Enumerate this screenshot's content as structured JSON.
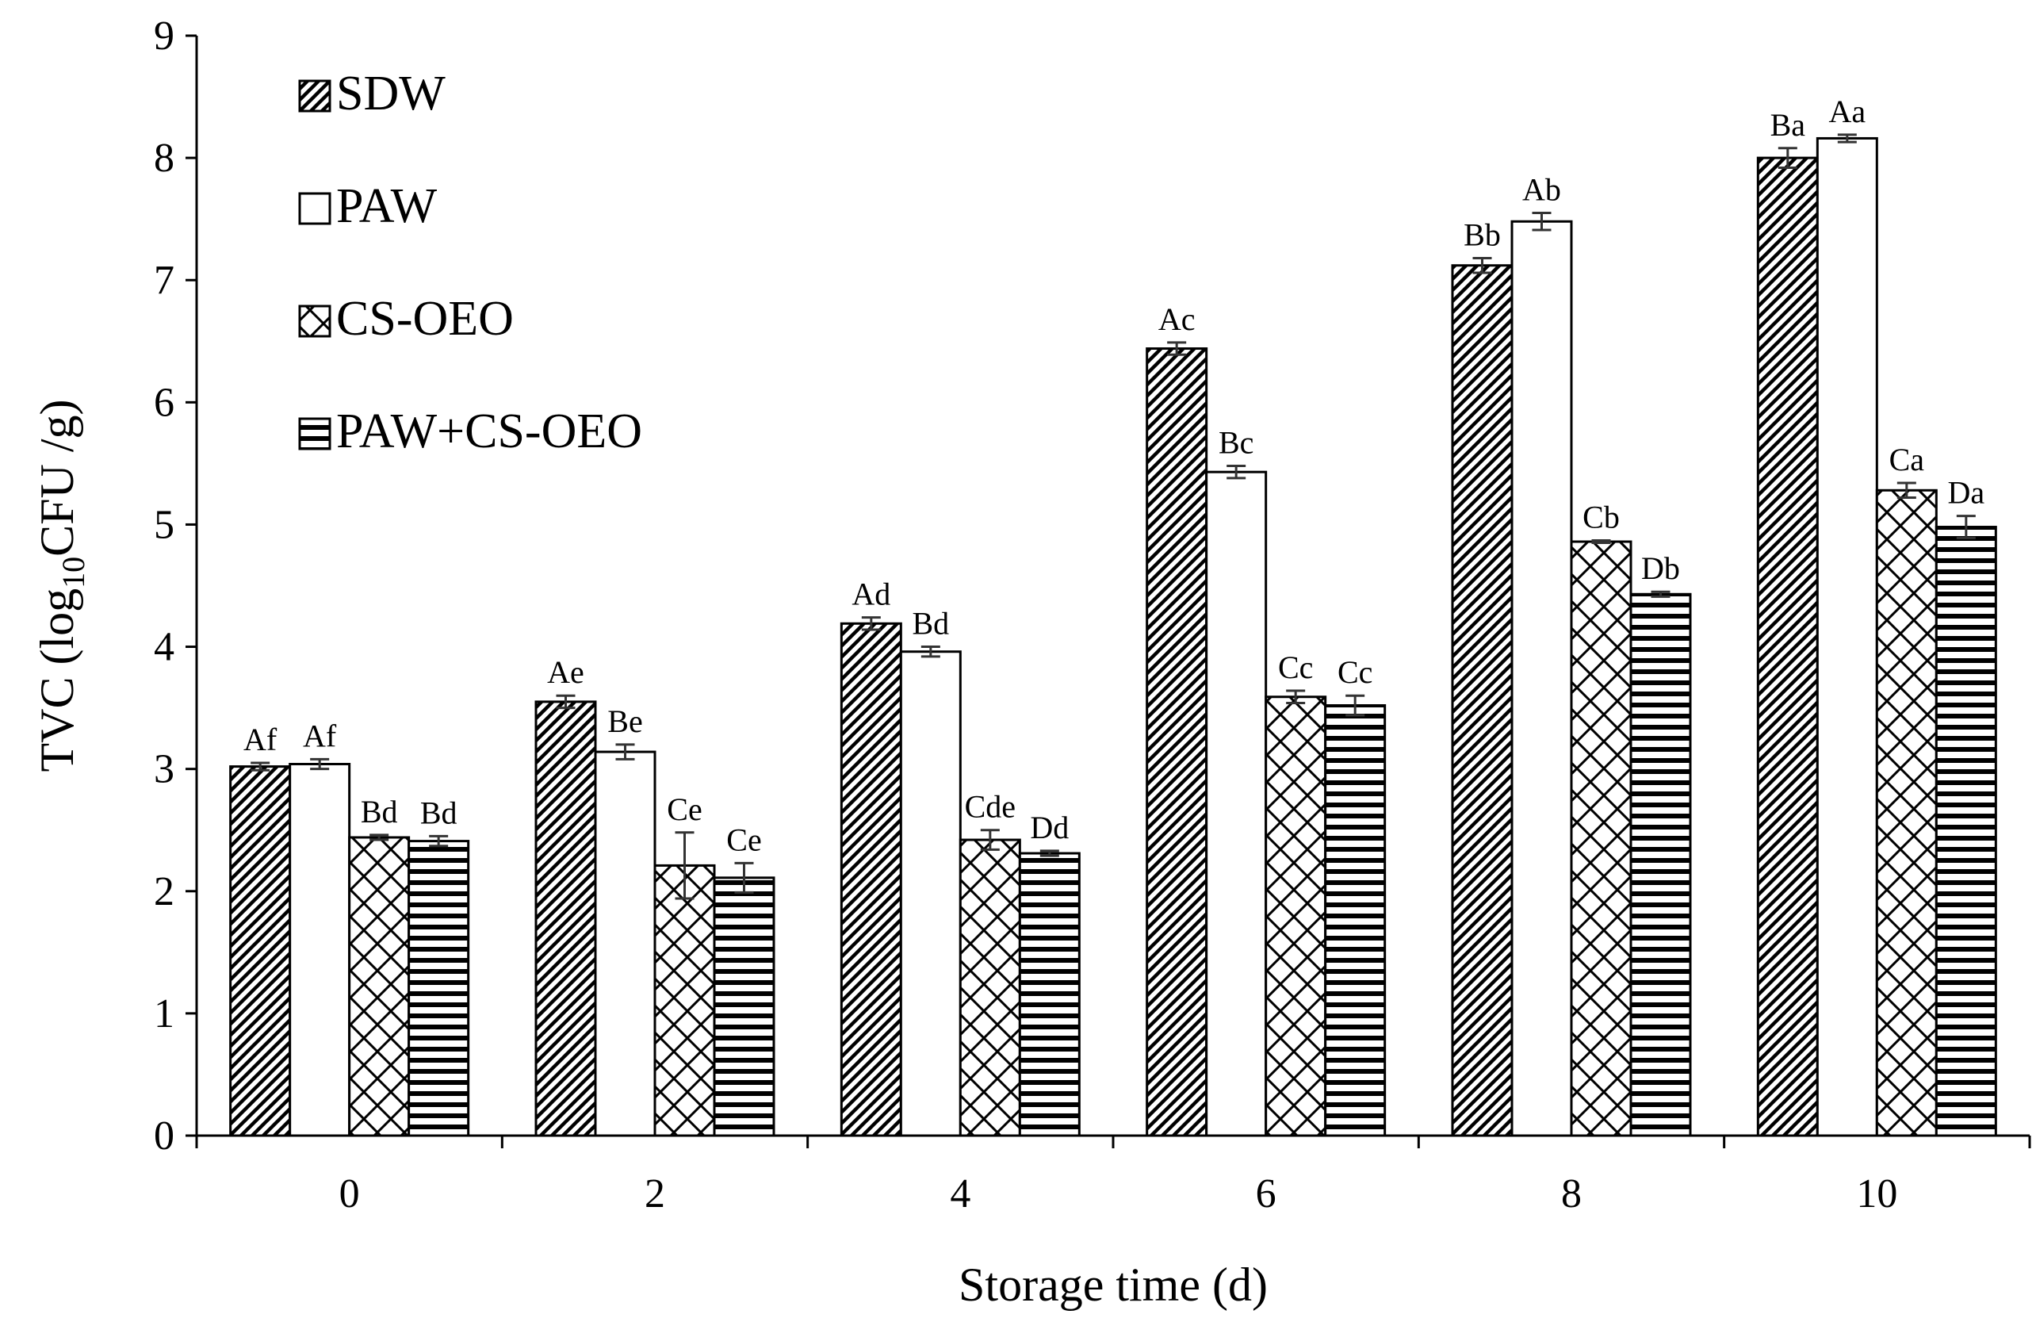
{
  "chart_data": {
    "type": "bar",
    "title": "",
    "xlabel": "Storage time (d)",
    "ylabel": {
      "prefix": "TVC (log",
      "sub": "10",
      "suffix": "CFU /g)"
    },
    "categories": [
      "0",
      "2",
      "4",
      "6",
      "8",
      "10"
    ],
    "ylim": [
      0,
      9
    ],
    "yticks": [
      "0",
      "1",
      "2",
      "3",
      "4",
      "5",
      "6",
      "7",
      "8",
      "9"
    ],
    "legend_position": "top-left",
    "series": [
      {
        "name": "SDW",
        "pattern": "diagonal-hatch",
        "values": [
          3.02,
          3.55,
          4.19,
          6.44,
          7.12,
          8.0
        ],
        "errors": [
          0.03,
          0.05,
          0.05,
          0.05,
          0.06,
          0.08
        ],
        "labels": [
          "Af",
          "Ae",
          "Ad",
          "Ac",
          "Bb",
          "Ba"
        ]
      },
      {
        "name": "PAW",
        "pattern": "empty",
        "values": [
          3.04,
          3.14,
          3.96,
          5.43,
          7.48,
          8.16
        ],
        "errors": [
          0.04,
          0.06,
          0.04,
          0.05,
          0.07,
          0.03
        ],
        "labels": [
          "Af",
          "Be",
          "Bd",
          "Bc",
          "Ab",
          "Aa"
        ]
      },
      {
        "name": "CS-OEO",
        "pattern": "diagonal-cross",
        "values": [
          2.44,
          2.21,
          2.42,
          3.59,
          4.86,
          5.28
        ],
        "errors": [
          0.02,
          0.27,
          0.08,
          0.05,
          0.01,
          0.06
        ],
        "labels": [
          "Bd",
          "Ce",
          "Cde",
          "Cc",
          "Cb",
          "Ca"
        ]
      },
      {
        "name": "PAW+CS-OEO",
        "pattern": "horizontal-stripes",
        "values": [
          2.41,
          2.11,
          2.31,
          3.52,
          4.43,
          4.98
        ],
        "errors": [
          0.04,
          0.12,
          0.02,
          0.08,
          0.02,
          0.09
        ],
        "labels": [
          "Bd",
          "Ce",
          "Dd",
          "Cc",
          "Db",
          "Da"
        ]
      }
    ]
  }
}
